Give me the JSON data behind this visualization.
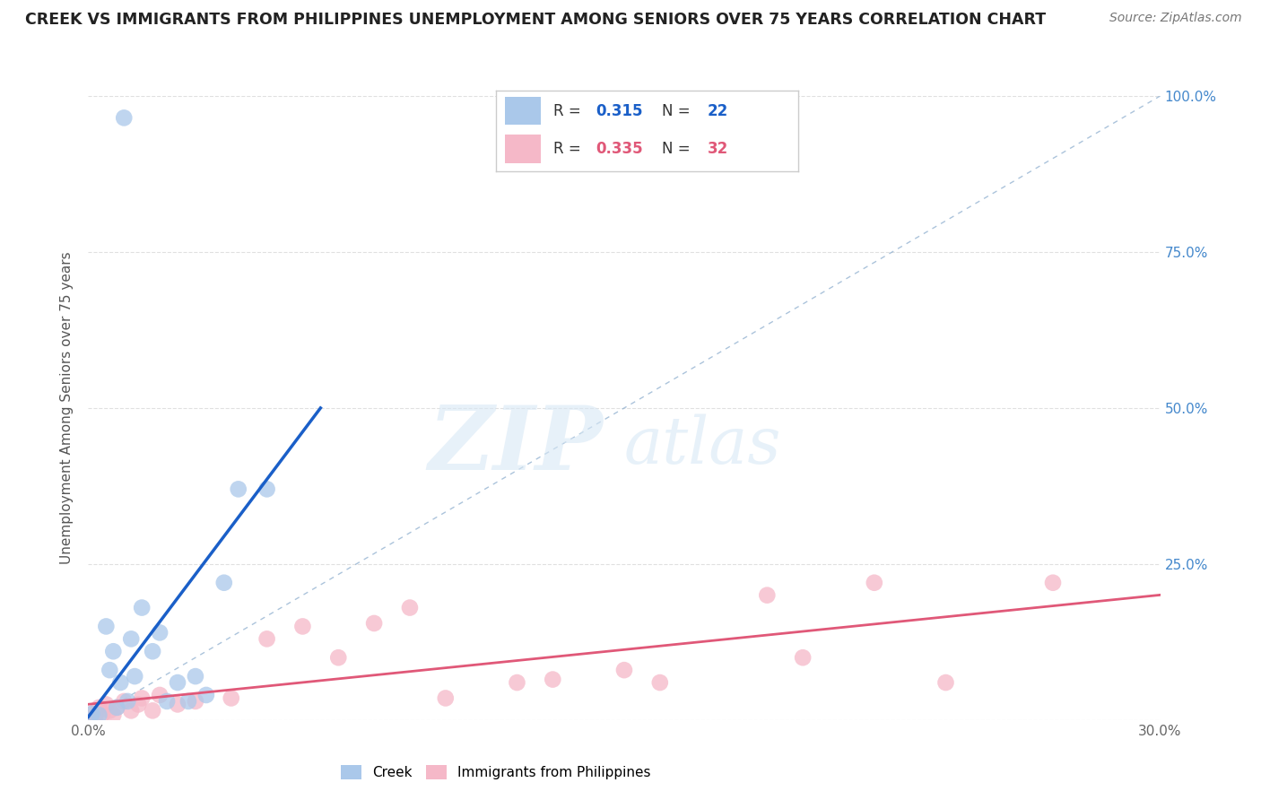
{
  "title": "CREEK VS IMMIGRANTS FROM PHILIPPINES UNEMPLOYMENT AMONG SENIORS OVER 75 YEARS CORRELATION CHART",
  "source": "Source: ZipAtlas.com",
  "ylabel": "Unemployment Among Seniors over 75 years",
  "xlim": [
    0.0,
    0.3
  ],
  "ylim": [
    0.0,
    1.0
  ],
  "yticks": [
    0.0,
    0.25,
    0.5,
    0.75,
    1.0
  ],
  "right_yticklabels": [
    "",
    "25.0%",
    "50.0%",
    "75.0%",
    "100.0%"
  ],
  "creek_R": 0.315,
  "creek_N": 22,
  "philippines_R": 0.335,
  "philippines_N": 32,
  "creek_color": "#aac8ea",
  "philippines_color": "#f5b8c8",
  "creek_line_color": "#1a5fc8",
  "philippines_line_color": "#e05878",
  "diagonal_color": "#88aacc",
  "creek_scatter_x": [
    0.001,
    0.003,
    0.005,
    0.006,
    0.007,
    0.008,
    0.009,
    0.01,
    0.011,
    0.012,
    0.013,
    0.015,
    0.018,
    0.02,
    0.022,
    0.025,
    0.028,
    0.03,
    0.033,
    0.038,
    0.042,
    0.05
  ],
  "creek_scatter_y": [
    0.01,
    0.008,
    0.15,
    0.08,
    0.11,
    0.02,
    0.06,
    0.965,
    0.03,
    0.13,
    0.07,
    0.18,
    0.11,
    0.14,
    0.03,
    0.06,
    0.03,
    0.07,
    0.04,
    0.22,
    0.37,
    0.37
  ],
  "philippines_scatter_x": [
    0.001,
    0.002,
    0.003,
    0.004,
    0.005,
    0.006,
    0.007,
    0.008,
    0.01,
    0.012,
    0.014,
    0.015,
    0.018,
    0.02,
    0.025,
    0.03,
    0.04,
    0.05,
    0.06,
    0.07,
    0.08,
    0.09,
    0.1,
    0.12,
    0.13,
    0.15,
    0.16,
    0.19,
    0.2,
    0.22,
    0.24,
    0.27
  ],
  "philippines_scatter_y": [
    0.01,
    0.005,
    0.02,
    0.01,
    0.025,
    0.015,
    0.008,
    0.02,
    0.03,
    0.015,
    0.025,
    0.035,
    0.015,
    0.04,
    0.025,
    0.03,
    0.035,
    0.13,
    0.15,
    0.1,
    0.155,
    0.18,
    0.035,
    0.06,
    0.065,
    0.08,
    0.06,
    0.2,
    0.1,
    0.22,
    0.06,
    0.22
  ],
  "bg_color": "#ffffff",
  "grid_color": "#cccccc"
}
